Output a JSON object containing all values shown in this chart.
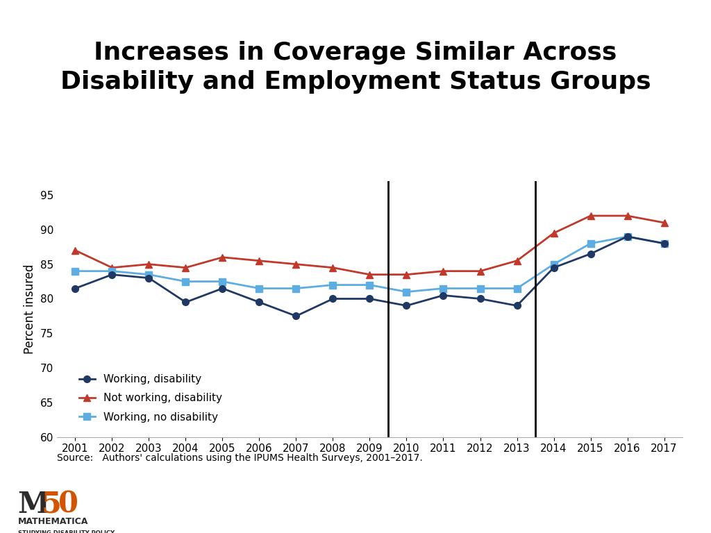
{
  "title": "Increases in Coverage Similar Across\nDisability and Employment Status Groups",
  "ylabel": "Percent insured",
  "source_text": "Source:   Authors' calculations using the IPUMS Health Surveys, 2001–2017.",
  "years": [
    2001,
    2002,
    2003,
    2004,
    2005,
    2006,
    2007,
    2008,
    2009,
    2010,
    2011,
    2012,
    2013,
    2014,
    2015,
    2016,
    2017
  ],
  "working_disability": [
    81.5,
    83.5,
    83.0,
    79.5,
    81.5,
    79.5,
    77.5,
    80.0,
    80.0,
    79.0,
    80.5,
    80.0,
    79.0,
    84.5,
    86.5,
    89.0,
    88.0
  ],
  "not_working_disability": [
    87.0,
    84.5,
    85.0,
    84.5,
    86.0,
    85.5,
    85.0,
    84.5,
    83.5,
    83.5,
    84.0,
    84.0,
    85.5,
    89.5,
    92.0,
    92.0,
    91.0
  ],
  "working_no_disability": [
    84.0,
    84.0,
    83.5,
    82.5,
    82.5,
    81.5,
    81.5,
    82.0,
    82.0,
    81.0,
    81.5,
    81.5,
    81.5,
    85.0,
    88.0,
    89.0,
    88.0
  ],
  "color_working_disability": "#1f3864",
  "color_not_working_disability": "#c0392b",
  "color_working_no_disability": "#5dade2",
  "vline_years": [
    2009.5,
    2013.5
  ],
  "ylim": [
    60,
    97
  ],
  "yticks": [
    60,
    65,
    70,
    75,
    80,
    85,
    90,
    95
  ],
  "title_color": "#000000",
  "header_bar_color": "#1f4e79",
  "background_color": "#ffffff"
}
